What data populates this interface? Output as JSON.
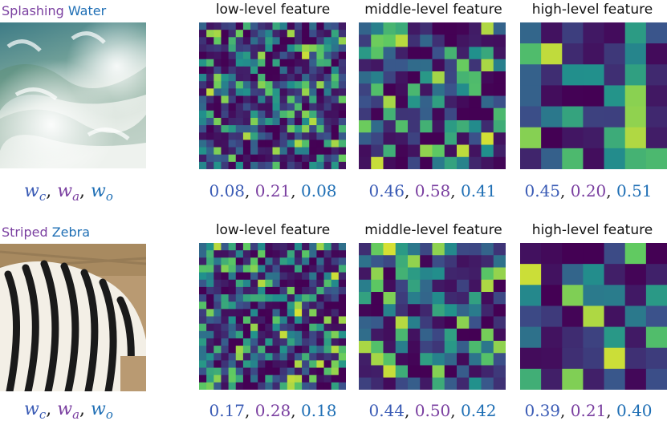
{
  "rows": [
    {
      "label_attr": "Splashing",
      "label_obj": "Water",
      "photo_icon": "water-splash-photo",
      "features": [
        {
          "title": "low-level feature",
          "grid": 20,
          "seed": 7,
          "weights": [
            "0.08",
            "0.21",
            "0.08"
          ]
        },
        {
          "title": "middle-level feature",
          "grid": 12,
          "seed": 19,
          "weights": [
            "0.46",
            "0.58",
            "0.41"
          ]
        },
        {
          "title": "high-level feature",
          "grid": 7,
          "seed": 31,
          "weights": [
            "0.45",
            "0.20",
            "0.51"
          ]
        }
      ]
    },
    {
      "label_attr": "Striped",
      "label_obj": "Zebra",
      "photo_icon": "zebra-photo",
      "features": [
        {
          "title": "low-level feature",
          "grid": 20,
          "seed": 43,
          "weights": [
            "0.17",
            "0.28",
            "0.18"
          ]
        },
        {
          "title": "middle-level feature",
          "grid": 12,
          "seed": 57,
          "weights": [
            "0.44",
            "0.50",
            "0.42"
          ]
        },
        {
          "title": "high-level feature",
          "grid": 7,
          "seed": 71,
          "weights": [
            "0.39",
            "0.21",
            "0.40"
          ]
        }
      ]
    }
  ],
  "weight_symbol": {
    "w": "w",
    "sub_c": "c",
    "sub_a": "a",
    "sub_o": "o"
  },
  "colors": {
    "attr": "#7a3fa0",
    "obj": "#1f6fb5",
    "composite": "#3a5bb5"
  }
}
